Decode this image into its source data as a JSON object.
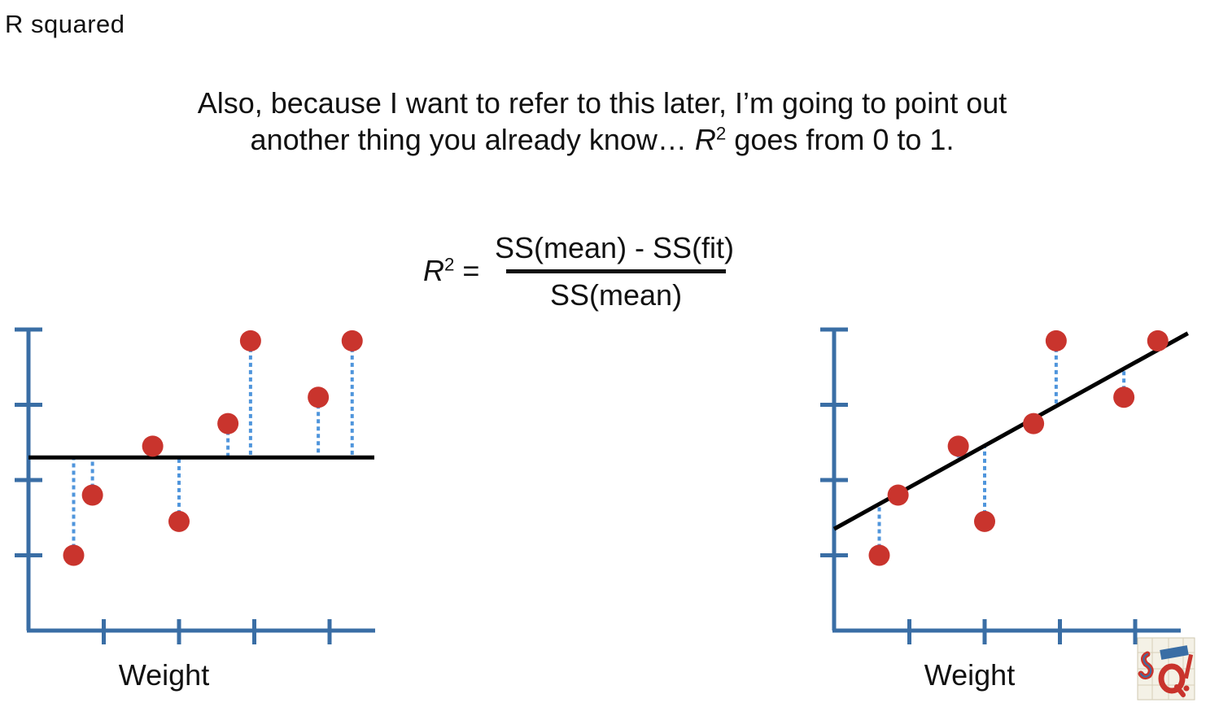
{
  "page": {
    "title": "R squared"
  },
  "caption": {
    "line1": "Also, because I want to refer to this later, I’m going to point out",
    "line2_before": "another thing you already know… ",
    "line2_var": "R",
    "line2_sup": "2",
    "line2_after": " goes from 0 to 1."
  },
  "formula": {
    "lhs_var": "R",
    "lhs_sup": "2",
    "equals": " =",
    "numerator": "SS(mean) - SS(fit)",
    "denominator": "SS(mean)"
  },
  "colors": {
    "axis": "#3a6ea5",
    "point": "#c9342d",
    "residual": "#4f95dc",
    "line": "#000000"
  },
  "chart_data": [
    {
      "type": "scatter",
      "xlabel": "Weight",
      "ylabel": "",
      "fit": {
        "kind": "mean",
        "y": 2.3
      },
      "residuals": "dotted vertical lines to mean",
      "points": [
        {
          "x": 0.6,
          "y": 1.0
        },
        {
          "x": 0.85,
          "y": 1.8
        },
        {
          "x": 1.65,
          "y": 2.45
        },
        {
          "x": 2.0,
          "y": 1.45
        },
        {
          "x": 2.65,
          "y": 2.75
        },
        {
          "x": 2.95,
          "y": 3.85
        },
        {
          "x": 3.85,
          "y": 3.1
        },
        {
          "x": 4.3,
          "y": 3.85
        }
      ]
    },
    {
      "type": "scatter",
      "xlabel": "Weight",
      "ylabel": "",
      "fit": {
        "kind": "linear",
        "x0": 0,
        "y0": 1.35,
        "x1": 4.7,
        "y1": 3.95
      },
      "residuals": "dotted vertical lines to fit",
      "points": [
        {
          "x": 0.6,
          "y": 1.0
        },
        {
          "x": 0.85,
          "y": 1.8
        },
        {
          "x": 1.65,
          "y": 2.45
        },
        {
          "x": 2.0,
          "y": 1.45
        },
        {
          "x": 2.65,
          "y": 2.75
        },
        {
          "x": 2.95,
          "y": 3.85
        },
        {
          "x": 3.85,
          "y": 3.1
        },
        {
          "x": 4.3,
          "y": 3.85
        }
      ]
    }
  ]
}
